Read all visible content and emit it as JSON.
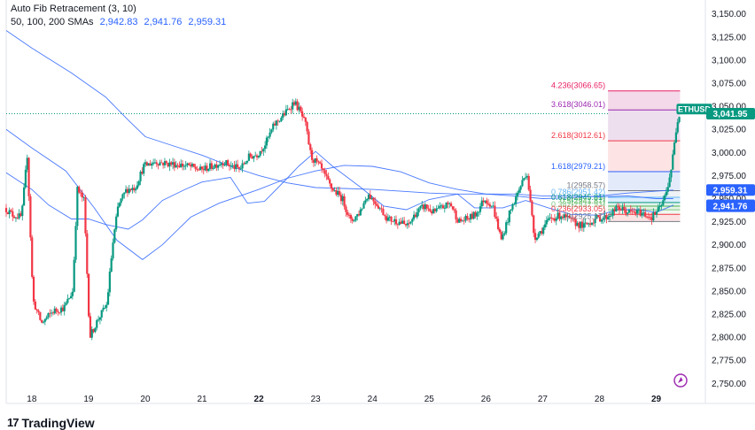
{
  "legend": {
    "title": "Auto Fib Retracement (3, 10)",
    "ma_label": "50, 100, 200 SMAs",
    "ma_values": [
      "2,942.83",
      "2,941.76",
      "2,959.31"
    ]
  },
  "footer": {
    "logo_mark": "17",
    "brand": "TradingView"
  },
  "chart_data": {
    "type": "candlestick",
    "symbol": "ETHUSD",
    "title": "Auto Fib Retracement (3, 10)",
    "y_axis": {
      "min": 2735,
      "max": 3165,
      "ticks": [
        3150,
        3125,
        3100,
        3075,
        3050,
        3025,
        3000,
        2975,
        2950,
        2925,
        2900,
        2875,
        2850,
        2825,
        2800,
        2775,
        2750
      ],
      "tick_labels": [
        "3,150.00",
        "3,125.00",
        "3,100.00",
        "3,075.00",
        "3,050.00",
        "3,025.00",
        "3,000.00",
        "2,975.00",
        "2,950.00",
        "2,925.00",
        "2,900.00",
        "2,875.00",
        "2,850.00",
        "2,825.00",
        "2,800.00",
        "2,775.00",
        "2,750.00"
      ]
    },
    "x_axis": {
      "min": 17.55,
      "max": 29.85,
      "ticks": [
        18,
        19,
        20,
        21,
        22,
        23,
        24,
        25,
        26,
        27,
        28,
        29
      ],
      "tick_labels": [
        "18",
        "19",
        "20",
        "21",
        "22",
        "23",
        "24",
        "25",
        "26",
        "27",
        "28",
        "29"
      ],
      "bold_labels": [
        "22",
        "29"
      ]
    },
    "last_price": 3041.95,
    "price_labels": [
      {
        "text": "ETHUSD",
        "value": 3047,
        "color": "#089981",
        "kind": "tag"
      },
      {
        "text": "3,041.95",
        "value": 3041.95,
        "color": "#089981",
        "kind": "axis"
      },
      {
        "text": "2,959.31",
        "value": 2959.31,
        "color": "#2962ff",
        "kind": "axis"
      },
      {
        "text": "2,942.83",
        "value": 2942.83,
        "color": "#2962ff",
        "kind": "axis"
      },
      {
        "text": "2,941.76",
        "value": 2941.76,
        "color": "#2962ff",
        "kind": "axis"
      }
    ],
    "fib_levels": [
      {
        "label": "4.236(3066.65)",
        "ratio": 4.236,
        "price": 3066.65,
        "color": "#e91e63"
      },
      {
        "label": "3.618(3046.01)",
        "ratio": 3.618,
        "price": 3046.01,
        "color": "#9c27b0"
      },
      {
        "label": "2.618(3012.61)",
        "ratio": 2.618,
        "price": 3012.61,
        "color": "#f23645"
      },
      {
        "label": "1.618(2979.21)",
        "ratio": 1.618,
        "price": 2979.21,
        "color": "#2962ff"
      },
      {
        "label": "1(2958.57)",
        "ratio": 1,
        "price": 2958.57,
        "color": "#787b86"
      },
      {
        "label": "0.786(2951.42)",
        "ratio": 0.786,
        "price": 2951.42,
        "color": "#64b5f6"
      },
      {
        "label": "0.618(2945.81)",
        "ratio": 0.618,
        "price": 2945.81,
        "color": "#089981"
      },
      {
        "label": "0.5(2941.87)",
        "ratio": 0.5,
        "price": 2941.87,
        "color": "#4caf50"
      },
      {
        "label": "0.382(2937.93)",
        "ratio": 0.382,
        "price": 2937.93,
        "color": "#81c784"
      },
      {
        "label": "0.236(2933.05)",
        "ratio": 0.236,
        "price": 2933.05,
        "color": "#f23645"
      },
      {
        "label": "0(2925.17)",
        "ratio": 0,
        "price": 2925.17,
        "color": "#787b86"
      }
    ],
    "fib_zone": {
      "x_start": 28.15,
      "x_end": 29.42
    },
    "series": [
      {
        "name": "SMA 50",
        "color": "#2962ff",
        "points": [
          [
            17.55,
            2978
          ],
          [
            18.0,
            2960
          ],
          [
            18.3,
            2943
          ],
          [
            18.7,
            2928
          ],
          [
            19.0,
            2928
          ],
          [
            19.3,
            2922
          ],
          [
            19.7,
            2917
          ],
          [
            19.95,
            2927
          ],
          [
            20.3,
            2948
          ],
          [
            20.7,
            2960
          ],
          [
            21.0,
            2968
          ],
          [
            21.5,
            2973
          ],
          [
            21.8,
            2945
          ],
          [
            22.1,
            2947
          ],
          [
            22.5,
            2972
          ],
          [
            22.7,
            2985
          ],
          [
            23.0,
            3001
          ],
          [
            23.3,
            2985
          ],
          [
            23.8,
            2962
          ],
          [
            24.2,
            2942
          ],
          [
            24.6,
            2938
          ],
          [
            25.0,
            2949
          ],
          [
            25.5,
            2955
          ],
          [
            25.8,
            2940
          ],
          [
            26.3,
            2940
          ],
          [
            26.7,
            2948
          ],
          [
            27.1,
            2940
          ],
          [
            27.5,
            2933
          ],
          [
            28.0,
            2932
          ],
          [
            28.3,
            2938
          ],
          [
            28.7,
            2938
          ],
          [
            29.0,
            2935
          ],
          [
            29.3,
            2943
          ]
        ]
      },
      {
        "name": "SMA 100",
        "color": "#2962ff",
        "points": [
          [
            17.55,
            3025
          ],
          [
            18.0,
            3005
          ],
          [
            18.6,
            2980
          ],
          [
            19.1,
            2940
          ],
          [
            19.5,
            2905
          ],
          [
            19.95,
            2884
          ],
          [
            20.3,
            2900
          ],
          [
            20.8,
            2930
          ],
          [
            21.3,
            2945
          ],
          [
            22.0,
            2960
          ],
          [
            22.5,
            2972
          ],
          [
            23.0,
            2980
          ],
          [
            23.5,
            2986
          ],
          [
            24.0,
            2985
          ],
          [
            24.5,
            2979
          ],
          [
            25.0,
            2967
          ],
          [
            25.5,
            2960
          ],
          [
            26.0,
            2955
          ],
          [
            26.5,
            2955
          ],
          [
            27.0,
            2953
          ],
          [
            27.5,
            2953
          ],
          [
            28.0,
            2952
          ],
          [
            28.5,
            2953
          ],
          [
            29.0,
            2950
          ],
          [
            29.3,
            2950
          ]
        ]
      },
      {
        "name": "SMA 200",
        "color": "#2962ff",
        "points": [
          [
            17.55,
            3132
          ],
          [
            18.0,
            3113
          ],
          [
            18.7,
            3086
          ],
          [
            19.3,
            3060
          ],
          [
            19.7,
            3035
          ],
          [
            20.0,
            3017
          ],
          [
            20.5,
            3007
          ],
          [
            21.0,
            2997
          ],
          [
            21.5,
            2985
          ],
          [
            22.0,
            2975
          ],
          [
            22.5,
            2967
          ],
          [
            23.0,
            2962
          ],
          [
            23.5,
            2961
          ],
          [
            24.0,
            2960
          ],
          [
            24.5,
            2958
          ],
          [
            25.0,
            2956
          ],
          [
            25.5,
            2955
          ],
          [
            26.0,
            2955
          ],
          [
            26.5,
            2953
          ],
          [
            27.0,
            2950
          ],
          [
            27.5,
            2951
          ],
          [
            28.0,
            2953
          ],
          [
            28.5,
            2956
          ],
          [
            29.0,
            2958
          ],
          [
            29.3,
            2959.31
          ]
        ]
      }
    ],
    "candles_shape": [
      [
        17.55,
        2940
      ],
      [
        17.7,
        2932
      ],
      [
        17.85,
        2930
      ],
      [
        17.95,
        2998
      ],
      [
        18.05,
        2840
      ],
      [
        18.2,
        2815
      ],
      [
        18.4,
        2828
      ],
      [
        18.6,
        2832
      ],
      [
        18.75,
        2850
      ],
      [
        18.83,
        2960
      ],
      [
        18.95,
        2948
      ],
      [
        19.05,
        2800
      ],
      [
        19.2,
        2820
      ],
      [
        19.35,
        2835
      ],
      [
        19.45,
        2898
      ],
      [
        19.55,
        2942
      ],
      [
        19.7,
        2960
      ],
      [
        19.85,
        2962
      ],
      [
        20.0,
        2985
      ],
      [
        20.2,
        2990
      ],
      [
        20.4,
        2988
      ],
      [
        20.6,
        2987
      ],
      [
        20.8,
        2985
      ],
      [
        21.0,
        2981
      ],
      [
        21.2,
        2985
      ],
      [
        21.4,
        2990
      ],
      [
        21.55,
        2985
      ],
      [
        21.7,
        2982
      ],
      [
        21.85,
        2995
      ],
      [
        22.0,
        2998
      ],
      [
        22.15,
        3010
      ],
      [
        22.3,
        3030
      ],
      [
        22.5,
        3043
      ],
      [
        22.65,
        3055
      ],
      [
        22.75,
        3045
      ],
      [
        22.85,
        3030
      ],
      [
        22.95,
        2995
      ],
      [
        23.1,
        2985
      ],
      [
        23.3,
        2962
      ],
      [
        23.5,
        2950
      ],
      [
        23.65,
        2925
      ],
      [
        23.8,
        2935
      ],
      [
        23.95,
        2955
      ],
      [
        24.1,
        2945
      ],
      [
        24.3,
        2928
      ],
      [
        24.5,
        2925
      ],
      [
        24.65,
        2920
      ],
      [
        24.8,
        2935
      ],
      [
        24.95,
        2942
      ],
      [
        25.1,
        2935
      ],
      [
        25.25,
        2940
      ],
      [
        25.4,
        2945
      ],
      [
        25.55,
        2925
      ],
      [
        25.7,
        2928
      ],
      [
        25.85,
        2933
      ],
      [
        26.0,
        2950
      ],
      [
        26.15,
        2942
      ],
      [
        26.3,
        2905
      ],
      [
        26.45,
        2935
      ],
      [
        26.6,
        2958
      ],
      [
        26.75,
        2980
      ],
      [
        26.88,
        2908
      ],
      [
        27.0,
        2915
      ],
      [
        27.15,
        2928
      ],
      [
        27.35,
        2932
      ],
      [
        27.55,
        2925
      ],
      [
        27.75,
        2920
      ],
      [
        27.95,
        2928
      ],
      [
        28.15,
        2930
      ],
      [
        28.35,
        2940
      ],
      [
        28.55,
        2935
      ],
      [
        28.75,
        2935
      ],
      [
        28.95,
        2930
      ],
      [
        29.1,
        2940
      ],
      [
        29.2,
        2955
      ],
      [
        29.3,
        2985
      ],
      [
        29.38,
        3025
      ],
      [
        29.42,
        3042
      ]
    ]
  }
}
